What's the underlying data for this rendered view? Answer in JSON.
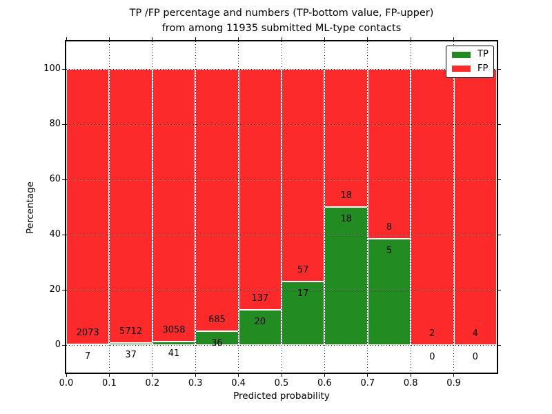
{
  "title": {
    "line1": "TP /FP percentage and numbers (TP-bottom value, FP-upper)",
    "line2": "from among 11935 submitted ML-type contacts"
  },
  "axes": {
    "xlabel": "Predicted probability",
    "ylabel": "Percentage"
  },
  "legend": {
    "position": "upper right",
    "items": [
      {
        "label": "TP",
        "color": "#228b22"
      },
      {
        "label": "FP",
        "color": "#fc2a2a"
      }
    ]
  },
  "colors": {
    "tp": "#228b22",
    "fp": "#fc2a2a",
    "grid": "#000000",
    "bar_edge": "#ffffff",
    "background": "#ffffff"
  },
  "chart_data": {
    "type": "bar",
    "subtype": "stacked-percentage-histogram",
    "title": "TP /FP percentage and numbers (TP-bottom value, FP-upper) from among 11935 submitted ML-type contacts",
    "xlabel": "Predicted probability",
    "ylabel": "Percentage",
    "xlim": [
      0.0,
      1.0
    ],
    "ylim": [
      -10,
      110
    ],
    "x_tick_labels": [
      "0.0",
      "0.1",
      "0.2",
      "0.3",
      "0.4",
      "0.5",
      "0.6",
      "0.7",
      "0.8",
      "0.9"
    ],
    "y_ticks": [
      0,
      20,
      40,
      60,
      80,
      100
    ],
    "grid": "dotted",
    "legend_position": "upper right",
    "total_contacts": 11935,
    "series": [
      {
        "name": "TP",
        "color": "#228b22",
        "stack_order": "bottom"
      },
      {
        "name": "FP",
        "color": "#fc2a2a",
        "stack_order": "top"
      }
    ],
    "bins": [
      {
        "x0": 0.0,
        "x1": 0.1,
        "tp": 7,
        "fp": 2073
      },
      {
        "x0": 0.1,
        "x1": 0.2,
        "tp": 37,
        "fp": 5712
      },
      {
        "x0": 0.2,
        "x1": 0.3,
        "tp": 41,
        "fp": 3058
      },
      {
        "x0": 0.3,
        "x1": 0.4,
        "tp": 36,
        "fp": 685
      },
      {
        "x0": 0.4,
        "x1": 0.5,
        "tp": 20,
        "fp": 137
      },
      {
        "x0": 0.5,
        "x1": 0.6,
        "tp": 17,
        "fp": 57
      },
      {
        "x0": 0.6,
        "x1": 0.7,
        "tp": 18,
        "fp": 18
      },
      {
        "x0": 0.7,
        "x1": 0.8,
        "tp": 5,
        "fp": 8
      },
      {
        "x0": 0.8,
        "x1": 0.9,
        "tp": 0,
        "fp": 2
      },
      {
        "x0": 0.9,
        "x1": 1.0,
        "tp": 0,
        "fp": 4
      }
    ]
  }
}
